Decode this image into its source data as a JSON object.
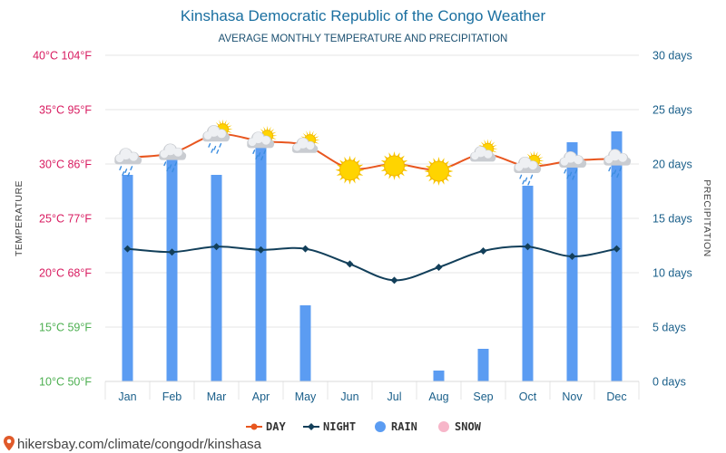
{
  "chart_data": {
    "type": "bar+line",
    "title": "Kinshasa Democratic Republic of the Congo Weather",
    "subtitle": "AVERAGE MONTHLY TEMPERATURE AND PRECIPITATION",
    "categories": [
      "Jan",
      "Feb",
      "Mar",
      "Apr",
      "May",
      "Jun",
      "Jul",
      "Aug",
      "Sep",
      "Oct",
      "Nov",
      "Dec"
    ],
    "series": [
      {
        "name": "DAY",
        "type": "line",
        "axis": "left",
        "unit": "°C",
        "color": "#e8561f",
        "values": [
          30.6,
          31.0,
          32.7,
          32.1,
          31.7,
          29.6,
          30.0,
          29.5,
          30.9,
          29.8,
          30.3,
          30.5
        ]
      },
      {
        "name": "NIGHT",
        "type": "line",
        "axis": "left",
        "unit": "°C",
        "color": "#123f5a",
        "values": [
          22.2,
          21.9,
          22.4,
          22.1,
          22.2,
          20.8,
          19.3,
          20.5,
          22.0,
          22.4,
          21.5,
          22.2
        ]
      },
      {
        "name": "RAIN",
        "type": "bar",
        "axis": "right",
        "unit": "days",
        "color": "#5b9cf2",
        "values": [
          19,
          21,
          19,
          22,
          7,
          0,
          0,
          1,
          3,
          18,
          22,
          23
        ]
      },
      {
        "name": "SNOW",
        "type": "bar",
        "axis": "right",
        "unit": "days",
        "color": "#f7b6c9",
        "values": [
          0,
          0,
          0,
          0,
          0,
          0,
          0,
          0,
          0,
          0,
          0,
          0
        ]
      }
    ],
    "weather_icons": [
      "rain-cloud",
      "rain-cloud",
      "sun-cloud-rain",
      "sun-cloud-rain",
      "sun-cloud",
      "sun",
      "sun",
      "sun",
      "sun-cloud",
      "sun-cloud-rain",
      "rain-cloud",
      "rain-cloud"
    ],
    "left_axis": {
      "label": "TEMPERATURE",
      "ylim": [
        10,
        40
      ],
      "ticks": [
        {
          "value": 40,
          "label": "40°C 104°F",
          "color": "#d81b60"
        },
        {
          "value": 35,
          "label": "35°C 95°F",
          "color": "#d81b60"
        },
        {
          "value": 30,
          "label": "30°C 86°F",
          "color": "#d81b60"
        },
        {
          "value": 25,
          "label": "25°C 77°F",
          "color": "#d81b60"
        },
        {
          "value": 20,
          "label": "20°C 68°F",
          "color": "#d81b60"
        },
        {
          "value": 15,
          "label": "15°C 59°F",
          "color": "#4caf50"
        },
        {
          "value": 10,
          "label": "10°C 50°F",
          "color": "#4caf50"
        }
      ]
    },
    "right_axis": {
      "label": "PRECIPITATION",
      "ylim": [
        0,
        30
      ],
      "ticks": [
        {
          "value": 30,
          "label": "30 days"
        },
        {
          "value": 25,
          "label": "25 days"
        },
        {
          "value": 20,
          "label": "20 days"
        },
        {
          "value": 15,
          "label": "15 days"
        },
        {
          "value": 10,
          "label": "10 days"
        },
        {
          "value": 5,
          "label": "5 days"
        },
        {
          "value": 0,
          "label": "0 days"
        }
      ]
    },
    "legend": [
      "DAY",
      "NIGHT",
      "RAIN",
      "SNOW"
    ],
    "legend_position": "bottom-center",
    "grid": true
  },
  "footer": {
    "url": "hikersbay.com/climate/congodr/kinshasa"
  }
}
